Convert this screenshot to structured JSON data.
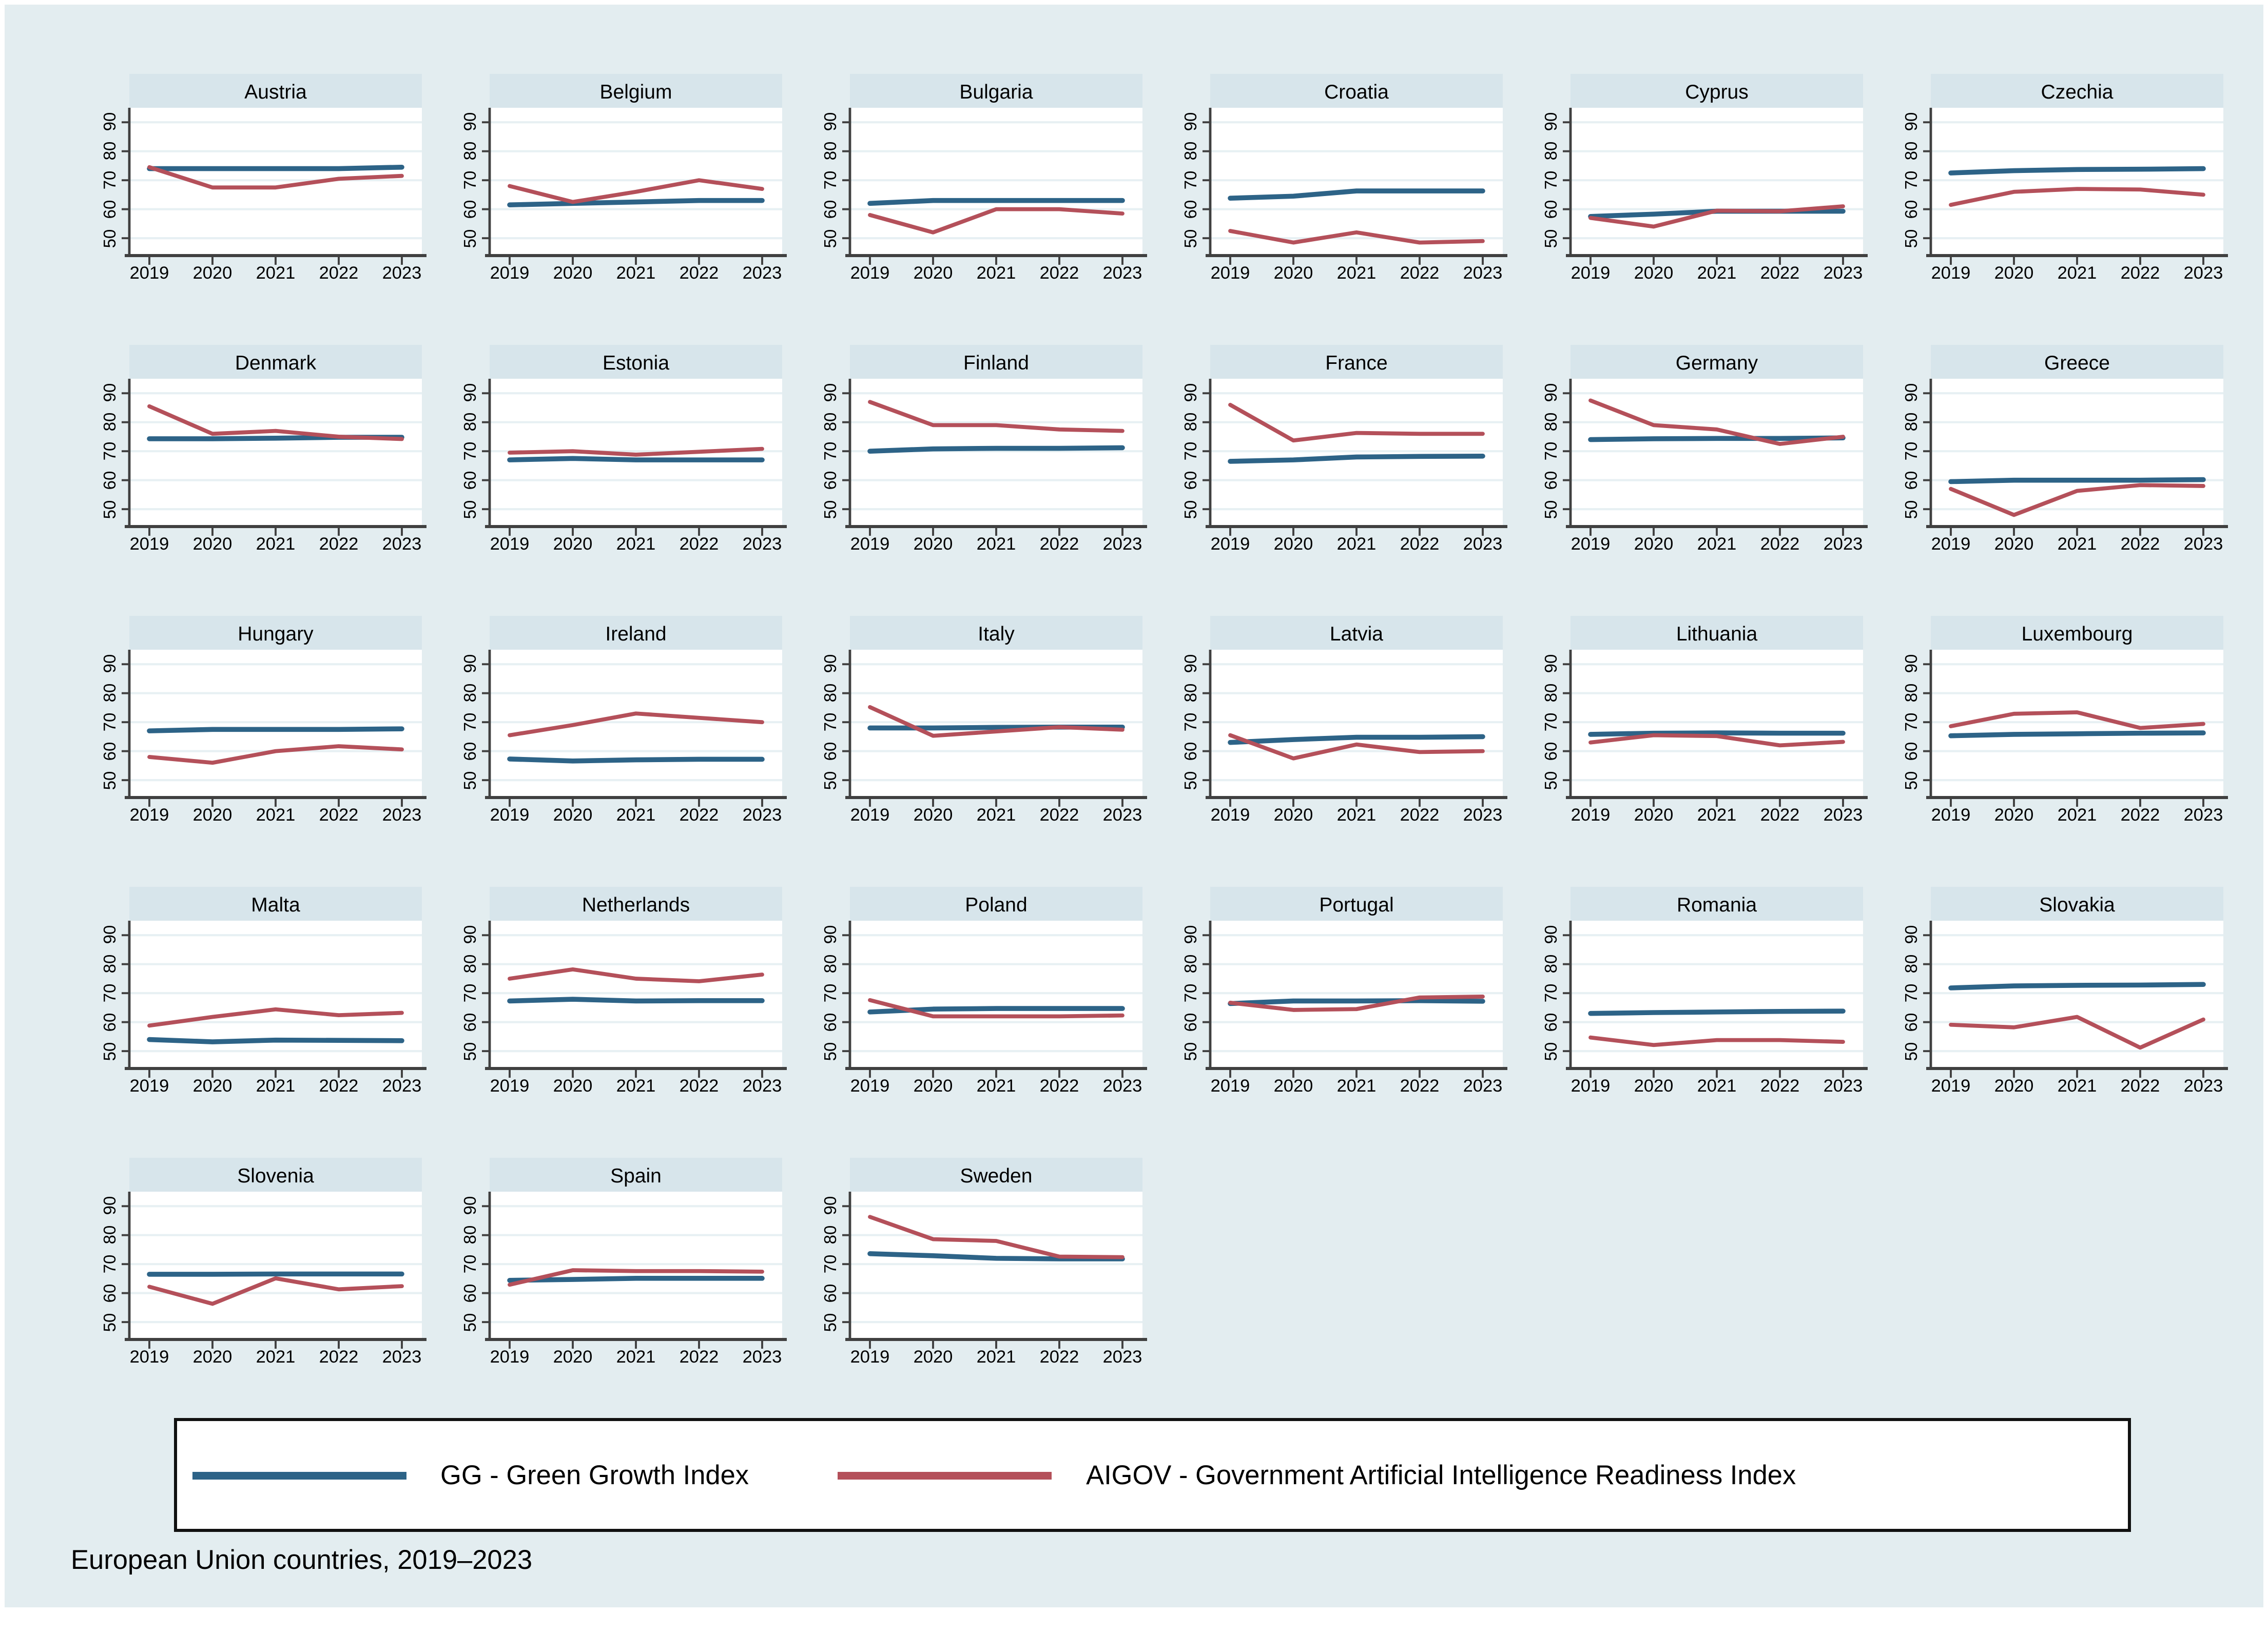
{
  "figure": {
    "caption": "European Union countries, 2019–2023",
    "background": "#e3edf0",
    "panel_header_bg": "#d7e5eb",
    "plot_bg": "#ffffff",
    "grid_color": "#e7f0f3",
    "axis_color": "#404040"
  },
  "legend": {
    "items": [
      {
        "key": "GG",
        "label": "GG - Green Growth Index",
        "color": "#2d6387"
      },
      {
        "key": "AIGOV",
        "label": "AIGOV - Government Artificial Intelligence Readiness Index",
        "color": "#b4505a"
      }
    ]
  },
  "axes": {
    "y_ticks": [
      50,
      60,
      70,
      80,
      90
    ],
    "x_ticks": [
      "2019",
      "2020",
      "2021",
      "2022",
      "2023"
    ],
    "ylim": [
      44,
      95
    ]
  },
  "chart_data": [
    {
      "country": "Austria",
      "type": "line",
      "x": [
        2019,
        2020,
        2021,
        2022,
        2023
      ],
      "series": [
        {
          "name": "GG",
          "values": [
            74,
            74,
            74,
            74,
            74.5
          ]
        },
        {
          "name": "AIGOV",
          "values": [
            74.5,
            67.5,
            67.5,
            70.5,
            71.5
          ]
        }
      ]
    },
    {
      "country": "Belgium",
      "type": "line",
      "x": [
        2019,
        2020,
        2021,
        2022,
        2023
      ],
      "series": [
        {
          "name": "GG",
          "values": [
            61.5,
            62,
            62.5,
            63,
            63
          ]
        },
        {
          "name": "AIGOV",
          "values": [
            68,
            62.5,
            66,
            70,
            67
          ]
        }
      ]
    },
    {
      "country": "Bulgaria",
      "type": "line",
      "x": [
        2019,
        2020,
        2021,
        2022,
        2023
      ],
      "series": [
        {
          "name": "GG",
          "values": [
            62,
            63,
            63,
            63,
            63
          ]
        },
        {
          "name": "AIGOV",
          "values": [
            58,
            52,
            60,
            60,
            58.5
          ]
        }
      ]
    },
    {
      "country": "Croatia",
      "type": "line",
      "x": [
        2019,
        2020,
        2021,
        2022,
        2023
      ],
      "series": [
        {
          "name": "GG",
          "values": [
            63.8,
            64.5,
            66.3,
            66.3,
            66.3
          ]
        },
        {
          "name": "AIGOV",
          "values": [
            52.5,
            48.5,
            52,
            48.5,
            49
          ]
        }
      ]
    },
    {
      "country": "Cyprus",
      "type": "line",
      "x": [
        2019,
        2020,
        2021,
        2022,
        2023
      ],
      "series": [
        {
          "name": "GG",
          "values": [
            57.5,
            58.3,
            59.3,
            59.3,
            59.3
          ]
        },
        {
          "name": "AIGOV",
          "values": [
            57,
            54,
            59.5,
            59.3,
            61
          ]
        }
      ]
    },
    {
      "country": "Czechia",
      "type": "line",
      "x": [
        2019,
        2020,
        2021,
        2022,
        2023
      ],
      "series": [
        {
          "name": "GG",
          "values": [
            72.5,
            73.3,
            73.7,
            73.8,
            74
          ]
        },
        {
          "name": "AIGOV",
          "values": [
            61.5,
            66,
            67,
            66.8,
            65
          ]
        }
      ]
    },
    {
      "country": "Denmark",
      "type": "line",
      "x": [
        2019,
        2020,
        2021,
        2022,
        2023
      ],
      "series": [
        {
          "name": "GG",
          "values": [
            74.3,
            74.3,
            74.5,
            74.8,
            74.8
          ]
        },
        {
          "name": "AIGOV",
          "values": [
            85.5,
            76,
            77,
            75,
            74.2
          ]
        }
      ]
    },
    {
      "country": "Estonia",
      "type": "line",
      "x": [
        2019,
        2020,
        2021,
        2022,
        2023
      ],
      "series": [
        {
          "name": "GG",
          "values": [
            67,
            67.5,
            67,
            67,
            67
          ]
        },
        {
          "name": "AIGOV",
          "values": [
            69.5,
            70,
            68.8,
            69.8,
            70.8
          ]
        }
      ]
    },
    {
      "country": "Finland",
      "type": "line",
      "x": [
        2019,
        2020,
        2021,
        2022,
        2023
      ],
      "series": [
        {
          "name": "GG",
          "values": [
            70,
            70.8,
            71,
            71,
            71.2
          ]
        },
        {
          "name": "AIGOV",
          "values": [
            87,
            79,
            79,
            77.5,
            77
          ]
        }
      ]
    },
    {
      "country": "France",
      "type": "line",
      "x": [
        2019,
        2020,
        2021,
        2022,
        2023
      ],
      "series": [
        {
          "name": "GG",
          "values": [
            66.5,
            67,
            68,
            68.2,
            68.3
          ]
        },
        {
          "name": "AIGOV",
          "values": [
            86,
            73.7,
            76.3,
            76,
            76
          ]
        }
      ]
    },
    {
      "country": "Germany",
      "type": "line",
      "x": [
        2019,
        2020,
        2021,
        2022,
        2023
      ],
      "series": [
        {
          "name": "GG",
          "values": [
            74,
            74.3,
            74.4,
            74.4,
            74.6
          ]
        },
        {
          "name": "AIGOV",
          "values": [
            87.5,
            79,
            77.5,
            72.5,
            75
          ]
        }
      ]
    },
    {
      "country": "Greece",
      "type": "line",
      "x": [
        2019,
        2020,
        2021,
        2022,
        2023
      ],
      "series": [
        {
          "name": "GG",
          "values": [
            59.5,
            60,
            60,
            60,
            60.2
          ]
        },
        {
          "name": "AIGOV",
          "values": [
            57,
            48,
            56.3,
            58.3,
            58
          ]
        }
      ]
    },
    {
      "country": "Hungary",
      "type": "line",
      "x": [
        2019,
        2020,
        2021,
        2022,
        2023
      ],
      "series": [
        {
          "name": "GG",
          "values": [
            67,
            67.5,
            67.5,
            67.5,
            67.7
          ]
        },
        {
          "name": "AIGOV",
          "values": [
            58,
            56,
            60,
            61.7,
            60.6
          ]
        }
      ]
    },
    {
      "country": "Ireland",
      "type": "line",
      "x": [
        2019,
        2020,
        2021,
        2022,
        2023
      ],
      "series": [
        {
          "name": "GG",
          "values": [
            57.3,
            56.6,
            57,
            57.2,
            57.2
          ]
        },
        {
          "name": "AIGOV",
          "values": [
            65.5,
            69,
            73,
            71.5,
            70
          ]
        }
      ]
    },
    {
      "country": "Italy",
      "type": "line",
      "x": [
        2019,
        2020,
        2021,
        2022,
        2023
      ],
      "series": [
        {
          "name": "GG",
          "values": [
            68,
            68,
            68.2,
            68.3,
            68.3
          ]
        },
        {
          "name": "AIGOV",
          "values": [
            75.2,
            65.3,
            66.8,
            68.3,
            67.4
          ]
        }
      ]
    },
    {
      "country": "Latvia",
      "type": "line",
      "x": [
        2019,
        2020,
        2021,
        2022,
        2023
      ],
      "series": [
        {
          "name": "GG",
          "values": [
            63,
            64,
            64.8,
            64.8,
            65
          ]
        },
        {
          "name": "AIGOV",
          "values": [
            65.5,
            57.5,
            62.3,
            59.7,
            60
          ]
        }
      ]
    },
    {
      "country": "Lithuania",
      "type": "line",
      "x": [
        2019,
        2020,
        2021,
        2022,
        2023
      ],
      "series": [
        {
          "name": "GG",
          "values": [
            65.8,
            66.2,
            66.3,
            66.2,
            66.2
          ]
        },
        {
          "name": "AIGOV",
          "values": [
            63,
            65.5,
            65.2,
            62,
            63.2
          ]
        }
      ]
    },
    {
      "country": "Luxembourg",
      "type": "line",
      "x": [
        2019,
        2020,
        2021,
        2022,
        2023
      ],
      "series": [
        {
          "name": "GG",
          "values": [
            65.3,
            65.8,
            66,
            66.2,
            66.3
          ]
        },
        {
          "name": "AIGOV",
          "values": [
            68.6,
            72.9,
            73.4,
            68,
            69.4
          ]
        }
      ]
    },
    {
      "country": "Malta",
      "type": "line",
      "x": [
        2019,
        2020,
        2021,
        2022,
        2023
      ],
      "series": [
        {
          "name": "GG",
          "values": [
            54,
            53.2,
            53.8,
            53.7,
            53.6
          ]
        },
        {
          "name": "AIGOV",
          "values": [
            58.8,
            61.8,
            64.4,
            62.4,
            63.2
          ]
        }
      ]
    },
    {
      "country": "Netherlands",
      "type": "line",
      "x": [
        2019,
        2020,
        2021,
        2022,
        2023
      ],
      "series": [
        {
          "name": "GG",
          "values": [
            67.3,
            67.9,
            67.3,
            67.4,
            67.4
          ]
        },
        {
          "name": "AIGOV",
          "values": [
            75,
            78.2,
            75,
            74.1,
            76.4
          ]
        }
      ]
    },
    {
      "country": "Poland",
      "type": "line",
      "x": [
        2019,
        2020,
        2021,
        2022,
        2023
      ],
      "series": [
        {
          "name": "GG",
          "values": [
            63.5,
            64.5,
            64.7,
            64.7,
            64.7
          ]
        },
        {
          "name": "AIGOV",
          "values": [
            67.6,
            62,
            62,
            62,
            62.3
          ]
        }
      ]
    },
    {
      "country": "Portugal",
      "type": "line",
      "x": [
        2019,
        2020,
        2021,
        2022,
        2023
      ],
      "series": [
        {
          "name": "GG",
          "values": [
            66.4,
            67.3,
            67.3,
            67.4,
            67.2
          ]
        },
        {
          "name": "AIGOV",
          "values": [
            66.7,
            64.2,
            64.5,
            68.5,
            68.8
          ]
        }
      ]
    },
    {
      "country": "Romania",
      "type": "line",
      "x": [
        2019,
        2020,
        2021,
        2022,
        2023
      ],
      "series": [
        {
          "name": "GG",
          "values": [
            63,
            63.3,
            63.5,
            63.7,
            63.8
          ]
        },
        {
          "name": "AIGOV",
          "values": [
            54.7,
            52.1,
            53.8,
            53.8,
            53.2
          ]
        }
      ]
    },
    {
      "country": "Slovakia",
      "type": "line",
      "x": [
        2019,
        2020,
        2021,
        2022,
        2023
      ],
      "series": [
        {
          "name": "GG",
          "values": [
            71.8,
            72.5,
            72.7,
            72.8,
            73
          ]
        },
        {
          "name": "AIGOV",
          "values": [
            59.1,
            58.2,
            61.8,
            51.2,
            60.9
          ]
        }
      ]
    },
    {
      "country": "Slovenia",
      "type": "line",
      "x": [
        2019,
        2020,
        2021,
        2022,
        2023
      ],
      "series": [
        {
          "name": "GG",
          "values": [
            66.5,
            66.5,
            66.6,
            66.6,
            66.6
          ]
        },
        {
          "name": "AIGOV",
          "values": [
            62.2,
            56.3,
            65.1,
            61.3,
            62.4
          ]
        }
      ]
    },
    {
      "country": "Spain",
      "type": "line",
      "x": [
        2019,
        2020,
        2021,
        2022,
        2023
      ],
      "series": [
        {
          "name": "GG",
          "values": [
            64.4,
            64.7,
            65.1,
            65.1,
            65.1
          ]
        },
        {
          "name": "AIGOV",
          "values": [
            62.9,
            67.9,
            67.6,
            67.6,
            67.4
          ]
        }
      ]
    },
    {
      "country": "Sweden",
      "type": "line",
      "x": [
        2019,
        2020,
        2021,
        2022,
        2023
      ],
      "series": [
        {
          "name": "GG",
          "values": [
            73.6,
            72.9,
            72,
            71.8,
            71.8
          ]
        },
        {
          "name": "AIGOV",
          "values": [
            86.3,
            78.6,
            78,
            72.6,
            72.4
          ]
        }
      ]
    }
  ]
}
